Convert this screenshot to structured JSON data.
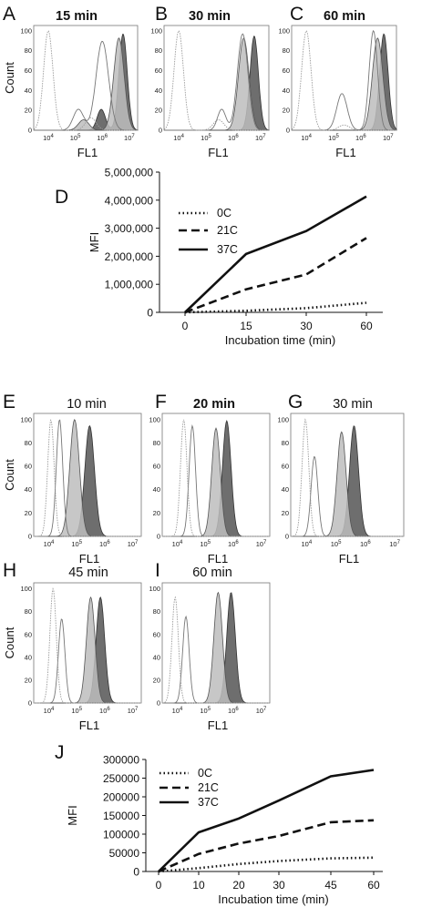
{
  "colors": {
    "fill_37C": "#6e6e6e",
    "fill_21C": "#bdbdbd",
    "line_0C": "#9a9a9a",
    "axis": "#111111"
  },
  "histogram_panels": [
    {
      "letter": "A",
      "title": "15 min",
      "ylabel": "Count",
      "xlabel": "FL1"
    },
    {
      "letter": "B",
      "title": "30 min",
      "ylabel": "",
      "xlabel": "FL1"
    },
    {
      "letter": "C",
      "title": "60 min",
      "ylabel": "",
      "xlabel": "FL1"
    },
    {
      "letter": "E",
      "title": "10 min",
      "ylabel": "Count",
      "xlabel": "FL1"
    },
    {
      "letter": "F",
      "title": "20 min",
      "ylabel": "",
      "xlabel": "FL1"
    },
    {
      "letter": "G",
      "title": "30 min",
      "ylabel": "",
      "xlabel": "FL1"
    },
    {
      "letter": "H",
      "title": "45 min",
      "ylabel": "Count",
      "xlabel": "FL1"
    },
    {
      "letter": "I",
      "title": "60 min",
      "ylabel": "",
      "xlabel": "FL1"
    }
  ],
  "chart_data": [
    {
      "panel": "D",
      "type": "line",
      "xlabel": "Incubation time (min)",
      "ylabel": "MFI",
      "x": [
        0,
        15,
        30,
        60
      ],
      "ylim": [
        0,
        5000000
      ],
      "yticks": [
        "0",
        "1,000,000",
        "2,000,000",
        "3,000,000",
        "4,000,000",
        "5,000,000"
      ],
      "xticks": [
        "0",
        "15",
        "30",
        "60"
      ],
      "legend_position": "top-left",
      "series": [
        {
          "name": "0C",
          "style": "dotted",
          "values": [
            0,
            60000,
            150000,
            340000
          ]
        },
        {
          "name": "21C",
          "style": "dashed",
          "values": [
            0,
            820000,
            1350000,
            2650000
          ]
        },
        {
          "name": "37C",
          "style": "solid",
          "values": [
            0,
            2080000,
            2900000,
            4130000
          ]
        }
      ]
    },
    {
      "panel": "J",
      "type": "line",
      "xlabel": "Incubation time (min)",
      "ylabel": "MFI",
      "x": [
        0,
        10,
        20,
        30,
        45,
        60
      ],
      "ylim": [
        0,
        300000
      ],
      "yticks": [
        "0",
        "50000",
        "100000",
        "150000",
        "200000",
        "250000",
        "300000"
      ],
      "xticks": [
        "0",
        "10",
        "20",
        "30",
        "45",
        "60"
      ],
      "legend_position": "top-left",
      "series": [
        {
          "name": "0C",
          "style": "dotted",
          "values": [
            0,
            9000,
            20000,
            28000,
            35000,
            37000
          ]
        },
        {
          "name": "21C",
          "style": "dashed",
          "values": [
            0,
            47000,
            75000,
            95000,
            132000,
            137000
          ]
        },
        {
          "name": "37C",
          "style": "solid",
          "values": [
            0,
            105000,
            142000,
            190000,
            255000,
            272000
          ]
        }
      ]
    }
  ]
}
